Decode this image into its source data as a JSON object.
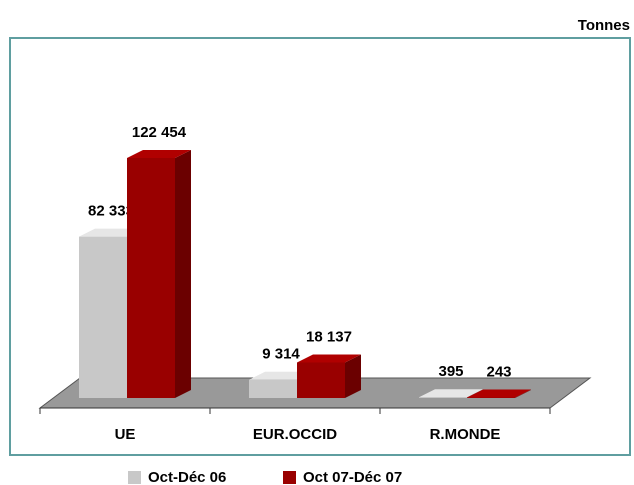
{
  "chart_data": {
    "type": "bar3d",
    "unit_label": "Tonnes",
    "categories": [
      "UE",
      "EUR.OCCID",
      "R.MONDE"
    ],
    "series": [
      {
        "name": "Oct-Déc 06",
        "color": "#c8c8c8",
        "values": [
          82333,
          9314,
          395
        ],
        "value_labels": [
          "82 333",
          "9 314",
          "395"
        ]
      },
      {
        "name": "Oct 07-Déc 07",
        "color": "#990000",
        "values": [
          122454,
          18137,
          243
        ],
        "value_labels": [
          "122 454",
          "18 137",
          "243"
        ]
      }
    ]
  }
}
